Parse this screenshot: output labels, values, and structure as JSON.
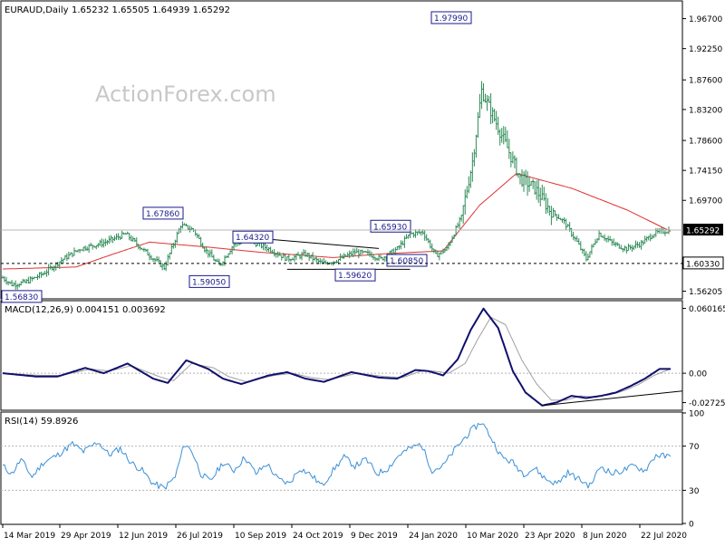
{
  "chart_data": {
    "type": "candlestick",
    "header": {
      "symbol": "EURAUD,Daily",
      "ohlc": "1.65232 1.65505 1.64939 1.65292"
    },
    "watermark": "ActionForex.com",
    "x_ticks": [
      "14 Mar 2019",
      "29 Apr 2019",
      "12 Jun 2019",
      "26 Jul 2019",
      "10 Sep 2019",
      "24 Oct 2019",
      "9 Dec 2019",
      "24 Jan 2020",
      "10 Mar 2020",
      "23 Apr 2020",
      "8 Jun 2020",
      "22 Jul 2020"
    ],
    "price_panel": {
      "ylim": [
        1.552,
        1.992
      ],
      "y_ticks": [
        "1.96700",
        "1.92250",
        "1.87600",
        "1.83200",
        "1.78600",
        "1.74150",
        "1.69700",
        "1.56205"
      ],
      "current_price": "1.65292",
      "horizontal_line": "1.60330",
      "annotations": [
        {
          "label": "1.97990",
          "value": 1.9799,
          "day": 261
        },
        {
          "label": "1.67860",
          "value": 1.6786,
          "day": 97
        },
        {
          "label": "1.64320",
          "value": 1.6432,
          "day": 134
        },
        {
          "label": "1.65930",
          "value": 1.6593,
          "day": 229
        },
        {
          "label": "1.56830",
          "value": 1.5683,
          "day": 2
        },
        {
          "label": "1.59050",
          "value": 1.5905,
          "day": 106
        },
        {
          "label": "1.59620",
          "value": 1.5962,
          "day": 174
        },
        {
          "label": "1.60850",
          "value": 1.6085,
          "day": 206
        }
      ],
      "trendlines": [
        {
          "from": [
            128,
            1.6432
          ],
          "to": [
            205,
            1.6255
          ]
        },
        {
          "from": [
            155,
            1.5945
          ],
          "to": [
            222,
            1.5945
          ]
        }
      ],
      "candle_days": 364,
      "sma": [
        [
          0,
          1.595
        ],
        [
          40,
          1.598
        ],
        [
          60,
          1.617
        ],
        [
          80,
          1.635
        ],
        [
          110,
          1.628
        ],
        [
          140,
          1.62
        ],
        [
          180,
          1.612
        ],
        [
          210,
          1.618
        ],
        [
          240,
          1.622
        ],
        [
          260,
          1.69
        ],
        [
          280,
          1.737
        ],
        [
          310,
          1.715
        ],
        [
          340,
          1.683
        ],
        [
          364,
          1.651
        ]
      ],
      "price_path": [
        [
          0,
          1.582
        ],
        [
          5,
          1.572
        ],
        [
          12,
          1.575
        ],
        [
          22,
          1.588
        ],
        [
          32,
          1.608
        ],
        [
          42,
          1.625
        ],
        [
          55,
          1.634
        ],
        [
          67,
          1.647
        ],
        [
          78,
          1.62
        ],
        [
          88,
          1.597
        ],
        [
          97,
          1.66
        ],
        [
          104,
          1.653
        ],
        [
          110,
          1.625
        ],
        [
          118,
          1.6
        ],
        [
          126,
          1.632
        ],
        [
          134,
          1.638
        ],
        [
          145,
          1.625
        ],
        [
          155,
          1.61
        ],
        [
          165,
          1.617
        ],
        [
          174,
          1.603
        ],
        [
          182,
          1.608
        ],
        [
          192,
          1.62
        ],
        [
          200,
          1.617
        ],
        [
          206,
          1.61
        ],
        [
          215,
          1.625
        ],
        [
          222,
          1.647
        ],
        [
          229,
          1.65
        ],
        [
          236,
          1.615
        ],
        [
          242,
          1.625
        ],
        [
          250,
          1.672
        ],
        [
          256,
          1.755
        ],
        [
          261,
          1.86
        ],
        [
          268,
          1.818
        ],
        [
          275,
          1.775
        ],
        [
          282,
          1.73
        ],
        [
          290,
          1.715
        ],
        [
          298,
          1.683
        ],
        [
          306,
          1.665
        ],
        [
          313,
          1.635
        ],
        [
          318,
          1.61
        ],
        [
          325,
          1.648
        ],
        [
          333,
          1.632
        ],
        [
          340,
          1.625
        ],
        [
          348,
          1.633
        ],
        [
          355,
          1.648
        ],
        [
          364,
          1.653
        ]
      ]
    },
    "macd_panel": {
      "label": "MACD(12,26,9) 0.004151 0.003692",
      "ylim": [
        -0.0335,
        0.0665
      ],
      "y_ticks": [
        "0.060165",
        "0.00",
        "-0.02725"
      ],
      "macd": [
        [
          0,
          0.0
        ],
        [
          18,
          -0.003
        ],
        [
          30,
          -0.003
        ],
        [
          45,
          0.005
        ],
        [
          55,
          0.0
        ],
        [
          68,
          0.009
        ],
        [
          82,
          -0.005
        ],
        [
          90,
          -0.009
        ],
        [
          100,
          0.012
        ],
        [
          112,
          0.004
        ],
        [
          120,
          -0.005
        ],
        [
          130,
          -0.01
        ],
        [
          145,
          -0.002
        ],
        [
          155,
          0.001
        ],
        [
          165,
          -0.005
        ],
        [
          175,
          -0.008
        ],
        [
          190,
          0.001
        ],
        [
          205,
          -0.004
        ],
        [
          215,
          -0.005
        ],
        [
          225,
          0.003
        ],
        [
          232,
          0.002
        ],
        [
          240,
          -0.002
        ],
        [
          248,
          0.013
        ],
        [
          255,
          0.04
        ],
        [
          262,
          0.06
        ],
        [
          270,
          0.042
        ],
        [
          278,
          0.002
        ],
        [
          285,
          -0.018
        ],
        [
          294,
          -0.03
        ],
        [
          302,
          -0.027
        ],
        [
          310,
          -0.021
        ],
        [
          318,
          -0.023
        ],
        [
          326,
          -0.021
        ],
        [
          334,
          -0.018
        ],
        [
          342,
          -0.012
        ],
        [
          350,
          -0.005
        ],
        [
          358,
          0.004
        ],
        [
          364,
          0.004
        ]
      ],
      "signal": [
        [
          0,
          0.0
        ],
        [
          20,
          -0.002
        ],
        [
          32,
          -0.002
        ],
        [
          48,
          0.004
        ],
        [
          58,
          0.002
        ],
        [
          70,
          0.007
        ],
        [
          85,
          -0.003
        ],
        [
          93,
          -0.007
        ],
        [
          103,
          0.009
        ],
        [
          115,
          0.005
        ],
        [
          123,
          -0.003
        ],
        [
          133,
          -0.008
        ],
        [
          148,
          -0.002
        ],
        [
          158,
          0.0
        ],
        [
          168,
          -0.004
        ],
        [
          178,
          -0.006
        ],
        [
          193,
          0.0
        ],
        [
          208,
          -0.003
        ],
        [
          218,
          -0.004
        ],
        [
          228,
          0.002
        ],
        [
          235,
          0.002
        ],
        [
          243,
          0.0
        ],
        [
          252,
          0.009
        ],
        [
          259,
          0.032
        ],
        [
          266,
          0.052
        ],
        [
          274,
          0.045
        ],
        [
          283,
          0.012
        ],
        [
          291,
          -0.01
        ],
        [
          299,
          -0.025
        ],
        [
          307,
          -0.025
        ],
        [
          315,
          -0.021
        ],
        [
          323,
          -0.022
        ],
        [
          331,
          -0.02
        ],
        [
          339,
          -0.016
        ],
        [
          347,
          -0.01
        ],
        [
          355,
          -0.002
        ],
        [
          364,
          0.004
        ]
      ],
      "trendline": {
        "from": [
          294,
          -0.03
        ],
        "to": [
          364,
          -0.018
        ]
      }
    },
    "rsi_panel": {
      "label": "RSI(14) 59.8926",
      "ylim": [
        0,
        100
      ],
      "y_ticks": [
        "100",
        "70",
        "30",
        "0"
      ],
      "levels": [
        70,
        30
      ],
      "rsi": [
        [
          0,
          52
        ],
        [
          5,
          45
        ],
        [
          10,
          58
        ],
        [
          16,
          42
        ],
        [
          22,
          55
        ],
        [
          30,
          62
        ],
        [
          38,
          72
        ],
        [
          44,
          65
        ],
        [
          52,
          74
        ],
        [
          58,
          62
        ],
        [
          64,
          68
        ],
        [
          70,
          55
        ],
        [
          76,
          48
        ],
        [
          82,
          36
        ],
        [
          88,
          32
        ],
        [
          94,
          42
        ],
        [
          99,
          72
        ],
        [
          103,
          66
        ],
        [
          108,
          45
        ],
        [
          113,
          38
        ],
        [
          120,
          55
        ],
        [
          126,
          48
        ],
        [
          132,
          60
        ],
        [
          138,
          45
        ],
        [
          144,
          54
        ],
        [
          150,
          40
        ],
        [
          156,
          36
        ],
        [
          162,
          50
        ],
        [
          168,
          44
        ],
        [
          174,
          34
        ],
        [
          180,
          48
        ],
        [
          186,
          60
        ],
        [
          192,
          52
        ],
        [
          198,
          58
        ],
        [
          204,
          45
        ],
        [
          210,
          50
        ],
        [
          216,
          62
        ],
        [
          222,
          68
        ],
        [
          228,
          72
        ],
        [
          234,
          48
        ],
        [
          240,
          52
        ],
        [
          246,
          66
        ],
        [
          252,
          78
        ],
        [
          256,
          85
        ],
        [
          261,
          92
        ],
        [
          266,
          78
        ],
        [
          272,
          60
        ],
        [
          278,
          55
        ],
        [
          284,
          45
        ],
        [
          290,
          50
        ],
        [
          296,
          40
        ],
        [
          302,
          36
        ],
        [
          308,
          46
        ],
        [
          314,
          40
        ],
        [
          320,
          34
        ],
        [
          326,
          52
        ],
        [
          332,
          45
        ],
        [
          338,
          48
        ],
        [
          344,
          52
        ],
        [
          350,
          48
        ],
        [
          356,
          62
        ],
        [
          364,
          60
        ]
      ]
    }
  }
}
